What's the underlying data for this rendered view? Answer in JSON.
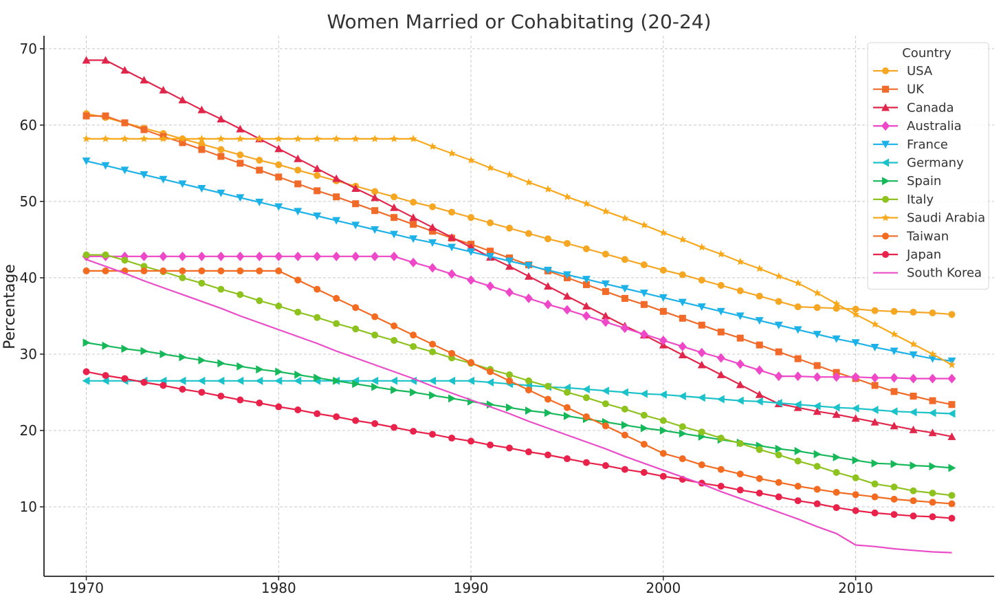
{
  "chart_data": {
    "type": "line",
    "title": "Women Married or Cohabitating (20-24)",
    "xlabel": "",
    "ylabel": "Percentage",
    "xlim": [
      1967.8,
      2017.2
    ],
    "ylim": [
      0.9,
      71.7
    ],
    "xticks": [
      1970,
      1980,
      1990,
      2000,
      2010
    ],
    "yticks": [
      10,
      20,
      30,
      40,
      50,
      60,
      70
    ],
    "grid": true,
    "legend": {
      "title": "Country",
      "position": "top-right"
    },
    "x": [
      1970,
      1971,
      1972,
      1973,
      1974,
      1975,
      1976,
      1977,
      1978,
      1979,
      1980,
      1981,
      1982,
      1983,
      1984,
      1985,
      1986,
      1987,
      1988,
      1989,
      1990,
      1991,
      1992,
      1993,
      1994,
      1995,
      1996,
      1997,
      1998,
      1999,
      2000,
      2001,
      2002,
      2003,
      2004,
      2005,
      2006,
      2007,
      2008,
      2009,
      2010,
      2011,
      2012,
      2013,
      2014,
      2015
    ],
    "series": [
      {
        "name": "USA",
        "color": "#F5A623",
        "marker": "circle",
        "values": [
          61.5,
          61.0,
          60.3,
          59.6,
          58.9,
          58.2,
          57.5,
          56.8,
          56.1,
          55.4,
          54.8,
          54.1,
          53.4,
          52.7,
          52.0,
          51.3,
          50.6,
          49.9,
          49.3,
          48.6,
          47.9,
          47.2,
          46.5,
          45.8,
          45.1,
          44.5,
          43.8,
          43.1,
          42.4,
          41.7,
          41.0,
          40.4,
          39.7,
          39.0,
          38.3,
          37.6,
          36.9,
          36.2,
          36.1,
          36.0,
          35.9,
          35.7,
          35.6,
          35.5,
          35.4,
          35.2
        ]
      },
      {
        "name": "UK",
        "color": "#F06A2A",
        "marker": "square",
        "values": [
          61.2,
          61.2,
          60.3,
          59.4,
          58.5,
          57.7,
          56.8,
          55.9,
          55.0,
          54.1,
          53.2,
          52.3,
          51.4,
          50.6,
          49.7,
          48.8,
          47.9,
          47.0,
          46.1,
          45.2,
          44.4,
          43.5,
          42.6,
          41.7,
          40.9,
          40.0,
          39.1,
          38.2,
          37.3,
          36.5,
          35.6,
          34.7,
          33.8,
          32.9,
          32.1,
          31.2,
          30.3,
          29.4,
          28.5,
          27.6,
          26.8,
          25.9,
          25.1,
          24.5,
          23.9,
          23.4
        ]
      },
      {
        "name": "Canada",
        "color": "#E0264B",
        "marker": "triangle-up",
        "values": [
          68.5,
          68.5,
          67.2,
          65.9,
          64.6,
          63.3,
          62.0,
          60.8,
          59.5,
          58.2,
          56.9,
          55.6,
          54.3,
          53.0,
          51.7,
          50.5,
          49.2,
          47.9,
          46.6,
          45.3,
          44.0,
          42.7,
          41.5,
          40.2,
          38.9,
          37.6,
          36.3,
          35.0,
          33.7,
          32.5,
          31.2,
          29.9,
          28.6,
          27.3,
          26.0,
          24.7,
          23.5,
          23.0,
          22.5,
          22.1,
          21.6,
          21.1,
          20.6,
          20.1,
          19.7,
          19.2
        ]
      },
      {
        "name": "Australia",
        "color": "#EE47C8",
        "marker": "diamond",
        "values": [
          42.8,
          42.8,
          42.8,
          42.8,
          42.8,
          42.8,
          42.8,
          42.8,
          42.8,
          42.8,
          42.8,
          42.8,
          42.8,
          42.8,
          42.8,
          42.8,
          42.8,
          42.0,
          41.3,
          40.5,
          39.7,
          38.9,
          38.1,
          37.3,
          36.5,
          35.8,
          35.0,
          34.2,
          33.4,
          32.6,
          31.8,
          31.0,
          30.2,
          29.5,
          28.7,
          27.9,
          27.1,
          27.1,
          27.0,
          27.0,
          27.0,
          26.9,
          26.9,
          26.8,
          26.8,
          26.8
        ]
      },
      {
        "name": "France",
        "color": "#1CB2E8",
        "marker": "triangle-down",
        "values": [
          55.3,
          54.7,
          54.1,
          53.5,
          52.9,
          52.3,
          51.7,
          51.1,
          50.5,
          49.9,
          49.3,
          48.7,
          48.1,
          47.5,
          46.9,
          46.3,
          45.7,
          45.1,
          44.6,
          44.0,
          43.4,
          42.8,
          42.2,
          41.6,
          41.0,
          40.4,
          39.8,
          39.2,
          38.6,
          38.0,
          37.4,
          36.8,
          36.2,
          35.6,
          35.0,
          34.4,
          33.8,
          33.2,
          32.6,
          32.0,
          31.5,
          30.9,
          30.4,
          29.9,
          29.4,
          29.1
        ]
      },
      {
        "name": "Germany",
        "color": "#1BC2C9",
        "marker": "triangle-left",
        "values": [
          26.5,
          26.5,
          26.5,
          26.5,
          26.5,
          26.5,
          26.5,
          26.5,
          26.5,
          26.5,
          26.5,
          26.5,
          26.5,
          26.5,
          26.5,
          26.5,
          26.5,
          26.5,
          26.5,
          26.5,
          26.5,
          26.3,
          26.1,
          25.9,
          25.7,
          25.6,
          25.4,
          25.2,
          25.0,
          24.8,
          24.7,
          24.5,
          24.3,
          24.1,
          23.9,
          23.8,
          23.6,
          23.4,
          23.2,
          23.0,
          22.9,
          22.7,
          22.5,
          22.4,
          22.3,
          22.2
        ]
      },
      {
        "name": "Spain",
        "color": "#16B85A",
        "marker": "triangle-right",
        "values": [
          31.5,
          31.1,
          30.7,
          30.4,
          30.0,
          29.6,
          29.2,
          28.8,
          28.4,
          28.0,
          27.7,
          27.3,
          26.9,
          26.5,
          26.1,
          25.7,
          25.3,
          25.0,
          24.6,
          24.2,
          23.8,
          23.4,
          23.0,
          22.6,
          22.3,
          21.9,
          21.5,
          21.1,
          20.7,
          20.3,
          20.0,
          19.6,
          19.2,
          18.8,
          18.4,
          18.0,
          17.6,
          17.3,
          16.9,
          16.5,
          16.1,
          15.7,
          15.6,
          15.4,
          15.3,
          15.1
        ]
      },
      {
        "name": "Italy",
        "color": "#8DC21F",
        "marker": "circle",
        "values": [
          43.0,
          43.0,
          42.3,
          41.5,
          40.8,
          40.0,
          39.3,
          38.5,
          37.8,
          37.0,
          36.3,
          35.5,
          34.8,
          34.0,
          33.3,
          32.5,
          31.8,
          31.0,
          30.3,
          29.5,
          28.8,
          28.0,
          27.3,
          26.5,
          25.8,
          25.0,
          24.3,
          23.5,
          22.8,
          22.0,
          21.3,
          20.5,
          19.8,
          19.0,
          18.3,
          17.5,
          16.8,
          16.0,
          15.3,
          14.5,
          13.8,
          13.0,
          12.6,
          12.1,
          11.8,
          11.5
        ]
      },
      {
        "name": "Saudi Arabia",
        "color": "#F7A81B",
        "marker": "star",
        "values": [
          58.2,
          58.2,
          58.2,
          58.2,
          58.2,
          58.2,
          58.2,
          58.2,
          58.2,
          58.2,
          58.2,
          58.2,
          58.2,
          58.2,
          58.2,
          58.2,
          58.2,
          58.2,
          57.2,
          56.3,
          55.4,
          54.4,
          53.5,
          52.5,
          51.6,
          50.6,
          49.7,
          48.7,
          47.8,
          46.9,
          45.9,
          45.0,
          44.0,
          43.1,
          42.1,
          41.2,
          40.2,
          39.3,
          38.0,
          36.6,
          35.2,
          33.9,
          32.6,
          31.3,
          30.0,
          28.6
        ]
      },
      {
        "name": "Taiwan",
        "color": "#F26B21",
        "marker": "circle",
        "values": [
          40.9,
          40.9,
          40.9,
          40.9,
          40.9,
          40.9,
          40.9,
          40.9,
          40.9,
          40.9,
          40.9,
          39.7,
          38.5,
          37.3,
          36.1,
          34.9,
          33.7,
          32.5,
          31.3,
          30.1,
          28.9,
          27.7,
          26.5,
          25.3,
          24.1,
          23.0,
          21.8,
          20.6,
          19.4,
          18.2,
          17.0,
          16.3,
          15.5,
          14.9,
          14.3,
          13.7,
          13.2,
          12.7,
          12.3,
          11.9,
          11.6,
          11.3,
          11.0,
          10.8,
          10.6,
          10.4
        ]
      },
      {
        "name": "Japan",
        "color": "#E8224A",
        "marker": "circle",
        "values": [
          27.7,
          27.2,
          26.8,
          26.3,
          25.9,
          25.4,
          25.0,
          24.5,
          24.0,
          23.6,
          23.1,
          22.7,
          22.2,
          21.8,
          21.3,
          20.9,
          20.4,
          19.9,
          19.5,
          19.0,
          18.6,
          18.1,
          17.7,
          17.2,
          16.8,
          16.3,
          15.8,
          15.4,
          14.9,
          14.5,
          14.0,
          13.6,
          13.1,
          12.7,
          12.2,
          11.8,
          11.3,
          10.8,
          10.4,
          9.9,
          9.5,
          9.2,
          9.0,
          8.8,
          8.7,
          8.5
        ]
      },
      {
        "name": "South Korea",
        "color": "#EA4CC8",
        "marker": "none",
        "values": [
          42.4,
          41.5,
          40.6,
          39.6,
          38.7,
          37.8,
          36.9,
          36.0,
          35.0,
          34.1,
          33.2,
          32.3,
          31.4,
          30.4,
          29.5,
          28.6,
          27.7,
          26.8,
          25.8,
          24.9,
          24.0,
          23.1,
          22.2,
          21.2,
          20.3,
          19.4,
          18.5,
          17.6,
          16.6,
          15.7,
          14.8,
          13.9,
          13.0,
          12.0,
          11.1,
          10.2,
          9.3,
          8.4,
          7.4,
          6.5,
          5.0,
          4.8,
          4.5,
          4.3,
          4.1,
          4.0
        ]
      }
    ]
  }
}
